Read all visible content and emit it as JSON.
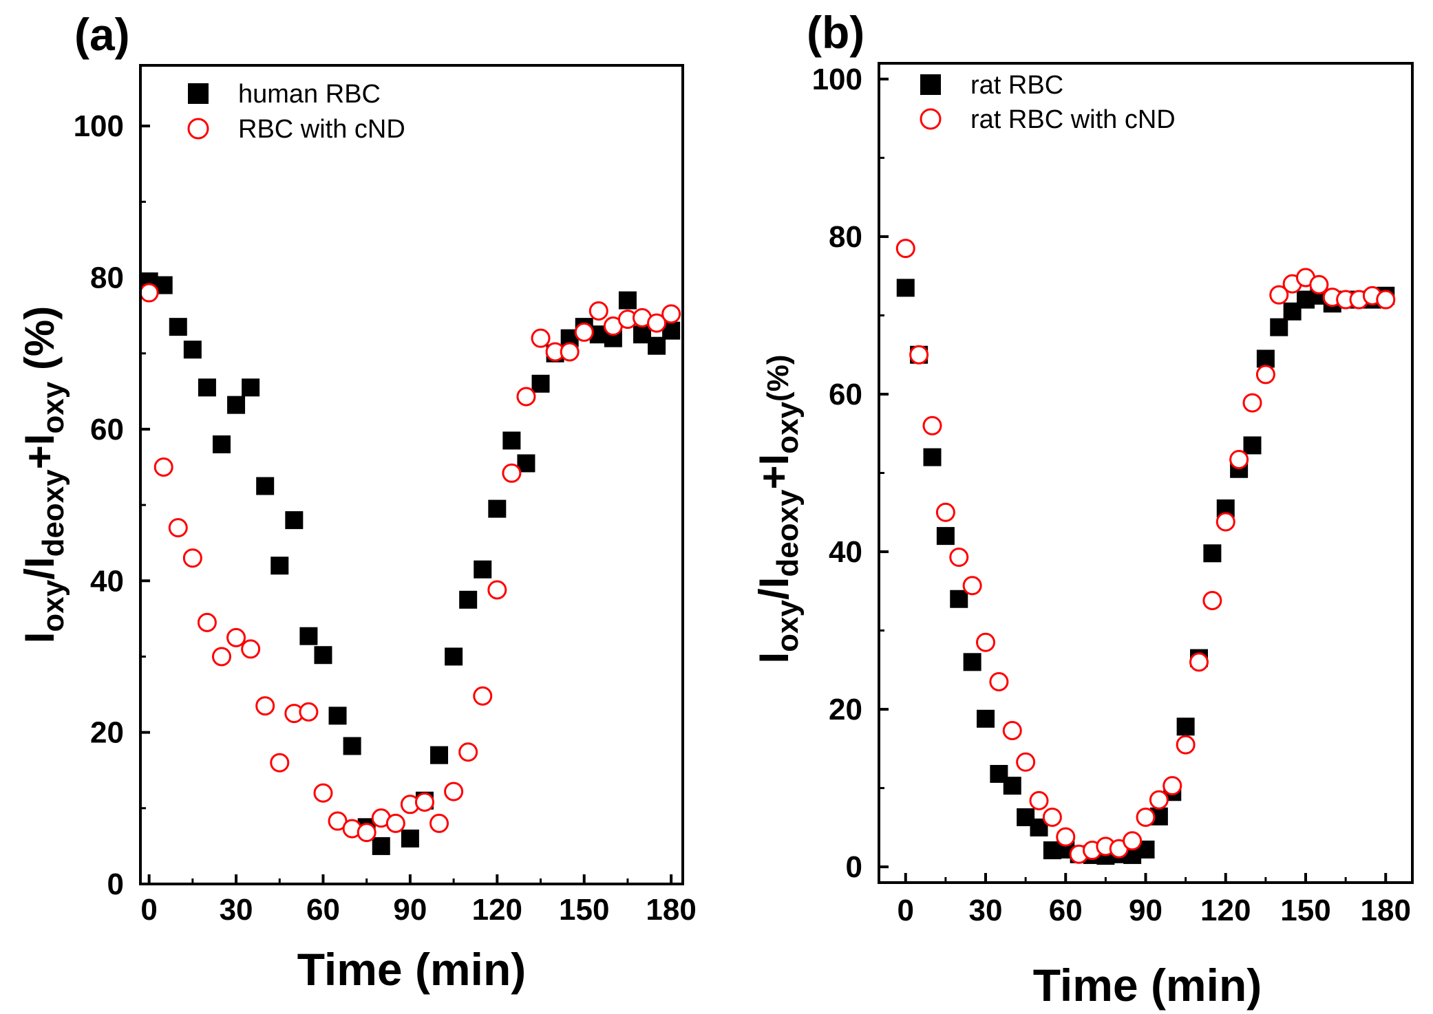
{
  "chart_data": [
    {
      "panel": "(a)",
      "type": "scatter",
      "xlabel": "Time (min)",
      "ylabel": {
        "base": "I",
        "sub1": "oxy",
        "mid1": "/I",
        "sub2": "deoxy",
        "mid2": "+I",
        "sub3": "oxy",
        "unit": " (%)"
      },
      "xlim": [
        -3,
        184
      ],
      "ylim": [
        0,
        108
      ],
      "xticks": [
        0,
        30,
        60,
        90,
        120,
        150,
        180
      ],
      "yticks": [
        0,
        20,
        40,
        60,
        80,
        100
      ],
      "legend_position": "top-left",
      "series": [
        {
          "name": "human RBC",
          "marker": "filled-square",
          "color": "#000000",
          "x": [
            0,
            5,
            10,
            15,
            20,
            25,
            30,
            35,
            40,
            45,
            50,
            55,
            60,
            65,
            70,
            75,
            80,
            90,
            95,
            100,
            105,
            110,
            115,
            120,
            125,
            130,
            135,
            140,
            145,
            150,
            155,
            160,
            165,
            170,
            175,
            180
          ],
          "y": [
            79.5,
            79,
            73.5,
            70.5,
            65.5,
            58,
            63.2,
            65.5,
            52.5,
            42,
            48,
            32.7,
            30.2,
            22.2,
            18.2,
            7.5,
            5,
            6,
            11,
            17,
            30,
            37.5,
            41.5,
            49.5,
            58.5,
            55.5,
            66,
            70,
            72,
            73.5,
            72.5,
            72,
            77,
            72.5,
            71,
            73
          ]
        },
        {
          "name": "RBC with cND",
          "marker": "open-circle",
          "color": "#ff0000",
          "x": [
            0,
            5,
            10,
            15,
            20,
            25,
            30,
            35,
            40,
            45,
            50,
            55,
            60,
            65,
            70,
            75,
            80,
            85,
            90,
            95,
            100,
            105,
            110,
            115,
            120,
            125,
            130,
            135,
            140,
            145,
            150,
            155,
            160,
            165,
            170,
            175,
            180
          ],
          "y": [
            78,
            55,
            47,
            43,
            34.5,
            30,
            32.5,
            31,
            23.5,
            16,
            22.5,
            22.7,
            12,
            8.3,
            7.3,
            6.8,
            8.7,
            8,
            10.5,
            10.8,
            8,
            12.2,
            17.4,
            24.8,
            38.8,
            54.2,
            64.3,
            72,
            70.2,
            70.2,
            72.8,
            75.6,
            73.6,
            74.5,
            74.7,
            74,
            75.2
          ]
        }
      ]
    },
    {
      "panel": "(b)",
      "type": "scatter",
      "xlabel": "Time (min)",
      "ylabel": {
        "base": "I",
        "sub1": "oxy",
        "mid1": "/I",
        "sub2": "deoxy",
        "mid2": "+I",
        "sub3": "oxy",
        "unit": "(%)"
      },
      "xlim": [
        -10,
        190
      ],
      "ylim": [
        -2,
        102
      ],
      "xticks": [
        0,
        30,
        60,
        90,
        120,
        150,
        180
      ],
      "yticks": [
        0,
        20,
        40,
        60,
        80,
        100
      ],
      "legend_position": "top-left",
      "series": [
        {
          "name": "rat RBC",
          "marker": "filled-square",
          "color": "#000000",
          "x": [
            0,
            5,
            10,
            15,
            20,
            25,
            30,
            35,
            40,
            45,
            50,
            55,
            60,
            65,
            70,
            75,
            80,
            85,
            90,
            95,
            100,
            105,
            110,
            115,
            120,
            125,
            130,
            135,
            140,
            145,
            150,
            155,
            160,
            165,
            170,
            175,
            180
          ],
          "y": [
            73.5,
            65,
            52,
            42,
            34,
            26,
            18.8,
            11.8,
            10.3,
            6.3,
            5,
            2.1,
            2.2,
            1.6,
            1.5,
            1.4,
            1.6,
            1.5,
            2.2,
            6.4,
            9.5,
            17.8,
            26.5,
            39.8,
            45.5,
            50.5,
            53.5,
            64.5,
            68.5,
            70.5,
            72,
            72.5,
            71.5,
            72,
            72,
            72,
            72.5
          ]
        },
        {
          "name": "rat RBC with cND",
          "marker": "open-circle",
          "color": "#ff0000",
          "x": [
            0,
            5,
            10,
            15,
            20,
            25,
            30,
            35,
            40,
            45,
            50,
            55,
            60,
            65,
            70,
            75,
            80,
            85,
            90,
            95,
            100,
            105,
            110,
            115,
            120,
            125,
            130,
            135,
            140,
            145,
            150,
            155,
            160,
            165,
            170,
            175,
            180
          ],
          "y": [
            78.5,
            65,
            56,
            45,
            39.3,
            35.7,
            28.5,
            23.5,
            17.3,
            13.3,
            8.4,
            6.3,
            3.8,
            1.6,
            2.1,
            2.6,
            2.3,
            3.3,
            6.3,
            8.5,
            10.3,
            15.5,
            26,
            33.8,
            43.8,
            51.7,
            58.9,
            62.5,
            72.6,
            74,
            74.8,
            73.9,
            72.3,
            72,
            72,
            72.5,
            72
          ]
        }
      ]
    }
  ]
}
